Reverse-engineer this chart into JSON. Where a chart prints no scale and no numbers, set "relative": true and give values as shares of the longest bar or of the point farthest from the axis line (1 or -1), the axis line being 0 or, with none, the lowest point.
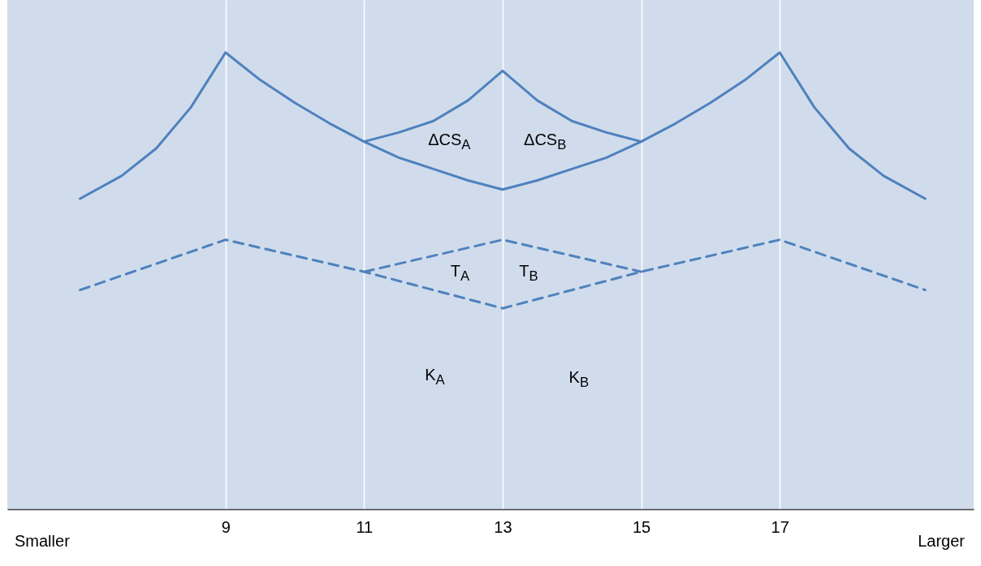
{
  "chart_data": {
    "type": "line",
    "relative": true,
    "series": [
      {
        "color": "#4f81bd",
        "line_style": "solid",
        "x": [
          6.9,
          7.5,
          8,
          8.5,
          9,
          9.5,
          10,
          10.5,
          11,
          11.5,
          12,
          12.5,
          13,
          13.5,
          14,
          14.5,
          15,
          15.5,
          16,
          16.5,
          17,
          17.5,
          18,
          18.5,
          19.1
        ],
        "values": [
          0.68,
          0.73,
          0.79,
          0.88,
          1,
          0.94,
          0.89,
          0.845,
          0.805,
          0.77,
          0.745,
          0.72,
          0.7,
          0.72,
          0.745,
          0.77,
          0.805,
          0.845,
          0.89,
          0.94,
          1,
          0.88,
          0.79,
          0.73,
          0.68
        ]
      },
      {
        "color": "#4f81bd",
        "line_style": "solid",
        "x": [
          11,
          11.5,
          12,
          12.5,
          13,
          13.5,
          14,
          14.5,
          15
        ],
        "values": [
          0.805,
          0.825,
          0.85,
          0.895,
          0.96,
          0.895,
          0.85,
          0.825,
          0.805
        ]
      },
      {
        "color": "#4f81bd",
        "line_style": "dashed",
        "x": [
          6.9,
          9,
          11,
          13,
          15,
          17,
          19.1
        ],
        "values": [
          0.48,
          0.59,
          0.52,
          0.44,
          0.52,
          0.59,
          0.48
        ]
      },
      {
        "color": "#4f81bd",
        "line_style": "dashed",
        "x": [
          11,
          13,
          15
        ],
        "values": [
          0.52,
          0.59,
          0.52
        ]
      }
    ],
    "xlim": [
      5.85,
      19.8
    ],
    "xticks": [
      9,
      11,
      13,
      15,
      17
    ],
    "grid": "x",
    "annotations": [
      "ΔCS$_{A}$",
      "ΔCS$_{B}$",
      "T$_{A}$",
      "T$_{B}$",
      "K$_{A}$",
      "K$_{B}$",
      "Smaller",
      "Larger"
    ]
  }
}
